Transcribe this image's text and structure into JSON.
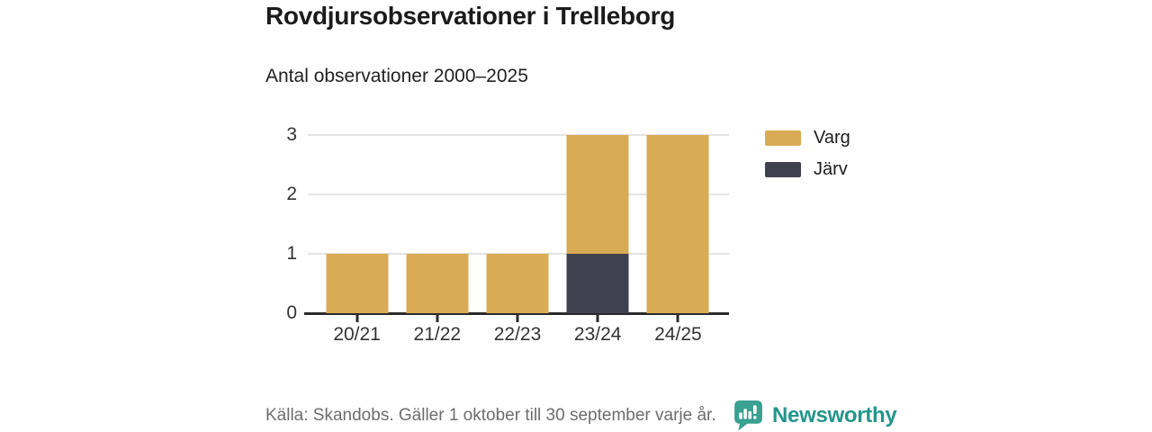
{
  "header": {
    "title": "Rovdjursobservationer i Trelleborg",
    "subtitle": "Antal observationer 2000–2025"
  },
  "chart_data": {
    "type": "bar",
    "stacked": true,
    "categories": [
      "20/21",
      "21/22",
      "22/23",
      "23/24",
      "24/25"
    ],
    "series": [
      {
        "name": "Varg",
        "color": "#d9ab55",
        "values": [
          1,
          1,
          1,
          2,
          3
        ]
      },
      {
        "name": "Järv",
        "color": "#40414e",
        "values": [
          0,
          0,
          0,
          1,
          0
        ]
      }
    ],
    "stack_order_bottom_to_top": [
      "Järv",
      "Varg"
    ],
    "totals": [
      1,
      1,
      1,
      3,
      3
    ],
    "title": "Rovdjursobservationer i Trelleborg",
    "subtitle": "Antal observationer 2000–2025",
    "xlabel": "",
    "ylabel": "",
    "ylim": [
      0,
      3
    ],
    "yticks": [
      0,
      1,
      2,
      3
    ],
    "grid": "horizontal",
    "legend_position": "right"
  },
  "legend": {
    "items": [
      {
        "label": "Varg",
        "color": "#d9ab55"
      },
      {
        "label": "Järv",
        "color": "#40414e"
      }
    ]
  },
  "footer": {
    "source": "Källa: Skandobs. Gäller 1 oktober till 30 september varje år.",
    "brand": "Newsworthy"
  },
  "colors": {
    "varg": "#d9ab55",
    "jarv": "#40414e",
    "brand_teal": "#23968a",
    "axis": "#2b2b2b",
    "grid": "#e4e4e4"
  }
}
